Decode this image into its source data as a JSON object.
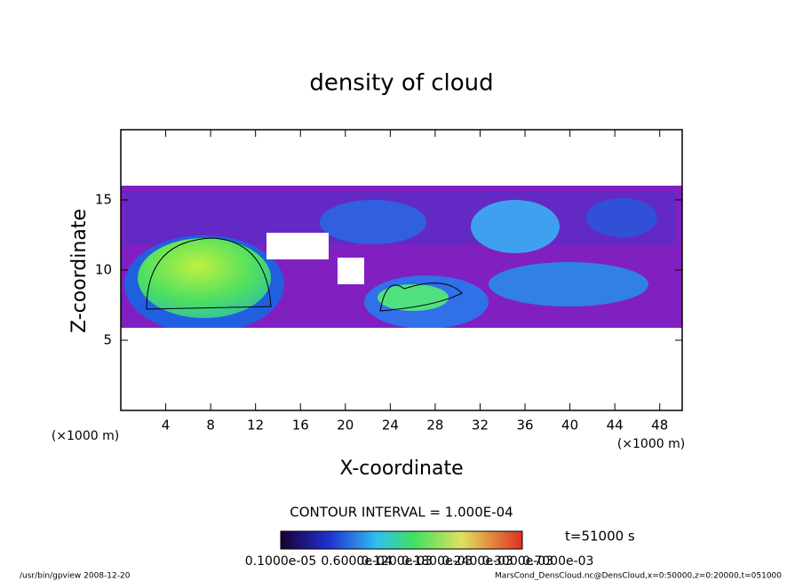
{
  "chart_data": {
    "type": "contour",
    "title": "density of cloud",
    "x_label": "X-coordinate",
    "y_label": "Z-coordinate",
    "x_unit": "(×1000 m)",
    "y_unit": "(×1000 m)",
    "xlim": [
      0,
      50
    ],
    "xticks": [
      4,
      8,
      12,
      16,
      20,
      24,
      28,
      32,
      36,
      40,
      44,
      48
    ],
    "ylim": [
      0,
      20
    ],
    "yticks": [
      5,
      10,
      15
    ],
    "contour_interval": "CONTOUR INTERVAL = 1.000E-04",
    "time": "t=51000 s",
    "colorbar_labels": [
      "0.1000e-05",
      "0.6000e-04",
      "0.1200e-03",
      "0.1800e-03",
      "0.2400e-03",
      "0.3000e-03",
      "0.7000e-03"
    ],
    "footer_left": "/usr/bin/gpview  2008-12-20",
    "footer_right": "MarsCond_DensCloud.nc@DensCloud,x=0:50000,z=0:20000,t=051000"
  }
}
